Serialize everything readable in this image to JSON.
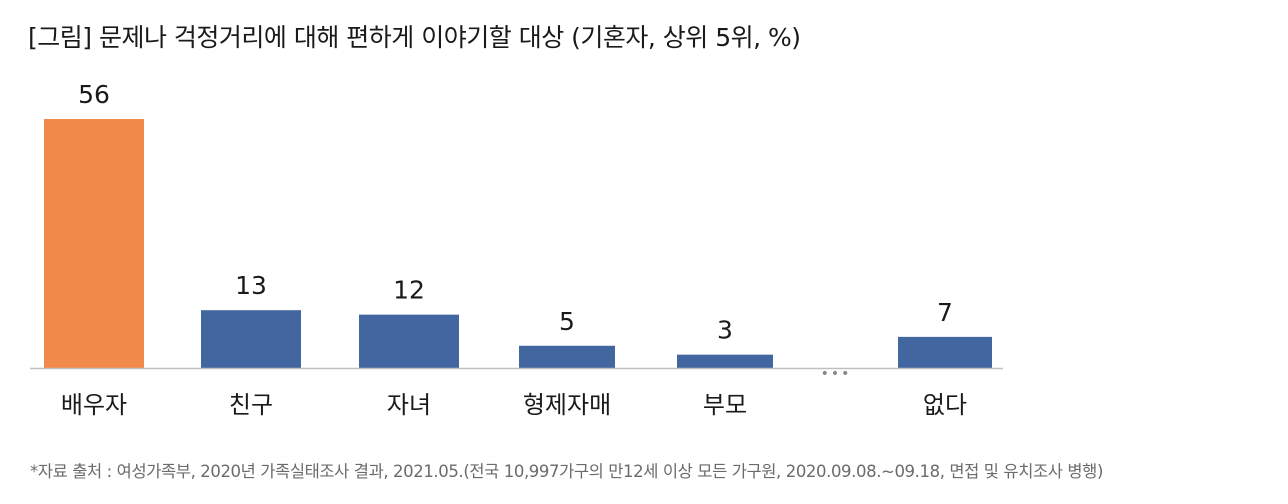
{
  "title": "[그림] 문제나 걱정거리에 대해 편하게 이야기할 대상 (기혼자, 상위 5위, %)",
  "footnote": "*자료 출처 : 여성가족부, 2020년 가족실태조사 결과, 2021.05.(전국 10,997가구의 만12세 이상 모든 가구원, 2020.09.08.~09.18, 면접 및 유치조사 병행)",
  "gap_marker": "•••",
  "colors": {
    "highlight": "#F0894A",
    "default": "#4266A0",
    "axis": "#bfbfbf",
    "gap_dots": "#888888"
  },
  "chart_data": {
    "type": "bar",
    "categories": [
      "배우자",
      "친구",
      "자녀",
      "형제자매",
      "부모",
      "없다"
    ],
    "values": [
      56,
      13,
      12,
      5,
      3,
      7
    ],
    "highlight_index": 0,
    "gap_before_index": 5,
    "data_labels": [
      "56",
      "13",
      "12",
      "5",
      "3",
      "7"
    ],
    "ylim": [
      0,
      56
    ]
  }
}
